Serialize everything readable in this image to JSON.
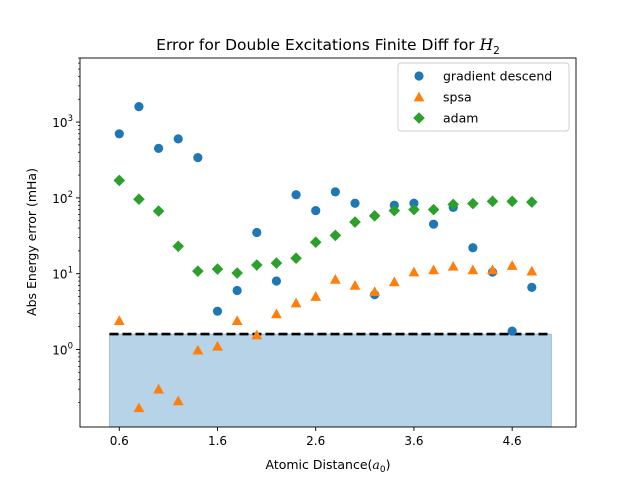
{
  "chart_data": {
    "type": "scatter",
    "title_prefix": "Error for Double Excitations Finite Diff for ",
    "title_math": "H",
    "title_sub": "2",
    "xlabel_prefix": "Atomic Distance(",
    "xlabel_math": "a",
    "xlabel_sub": "0",
    "xlabel_suffix": ")",
    "ylabel": "Abs Energy error (mHa)",
    "xlim": [
      0.2,
      5.25
    ],
    "ylog": true,
    "ylim": [
      0.095,
      7000
    ],
    "xticks": [
      0.6,
      1.6,
      2.6,
      3.6,
      4.6
    ],
    "xtick_labels": [
      "0.6",
      "1.6",
      "2.6",
      "3.6",
      "4.6"
    ],
    "yticks": [
      1,
      10,
      100,
      1000
    ],
    "ytick_bases": [
      "10",
      "10",
      "10",
      "10"
    ],
    "ytick_exps": [
      "0",
      "1",
      "2",
      "3"
    ],
    "legend_position": "top-right",
    "threshold": {
      "y": 1.6,
      "x_range": [
        0.5,
        5.0
      ],
      "color": "#000000",
      "fill_color": "#1f77b4"
    },
    "series": [
      {
        "name": "gradient descend",
        "marker": "circle",
        "color": "#1f77b4",
        "x": [
          0.6,
          0.8,
          1.0,
          1.2,
          1.4,
          1.6,
          1.8,
          2.0,
          2.2,
          2.4,
          2.6,
          2.8,
          3.0,
          3.2,
          3.4,
          3.6,
          3.8,
          4.0,
          4.2,
          4.4,
          4.6,
          4.8
        ],
        "y": [
          700,
          1600,
          450,
          600,
          340,
          3.2,
          6.0,
          35,
          8.0,
          110,
          68,
          120,
          85,
          5.3,
          80,
          85,
          45,
          75,
          22,
          10.5,
          1.75,
          6.6
        ]
      },
      {
        "name": "spsa",
        "marker": "triangle",
        "color": "#ff7f0e",
        "x": [
          0.6,
          0.8,
          1.0,
          1.2,
          1.4,
          1.6,
          1.8,
          2.0,
          2.2,
          2.4,
          2.6,
          2.8,
          3.0,
          3.2,
          3.4,
          3.6,
          3.8,
          4.0,
          4.2,
          4.4,
          4.6,
          4.8
        ],
        "y": [
          2.4,
          0.17,
          0.3,
          0.21,
          0.98,
          1.1,
          2.4,
          1.55,
          2.95,
          4.1,
          5.0,
          8.4,
          7.0,
          5.8,
          7.8,
          10.5,
          11.2,
          12.5,
          11.2,
          11.2,
          12.8,
          10.8
        ]
      },
      {
        "name": "adam",
        "marker": "diamond",
        "color": "#2ca02c",
        "x": [
          0.6,
          0.8,
          1.0,
          1.2,
          1.4,
          1.6,
          1.8,
          2.0,
          2.2,
          2.4,
          2.6,
          2.8,
          3.0,
          3.2,
          3.4,
          3.6,
          3.8,
          4.0,
          4.2,
          4.4,
          4.6,
          4.8
        ],
        "y": [
          170,
          96,
          67,
          23,
          10.8,
          11.5,
          10.2,
          13.0,
          13.8,
          16.0,
          26,
          32,
          48,
          58,
          68,
          70,
          70,
          82,
          84,
          90,
          90,
          88
        ]
      }
    ]
  }
}
